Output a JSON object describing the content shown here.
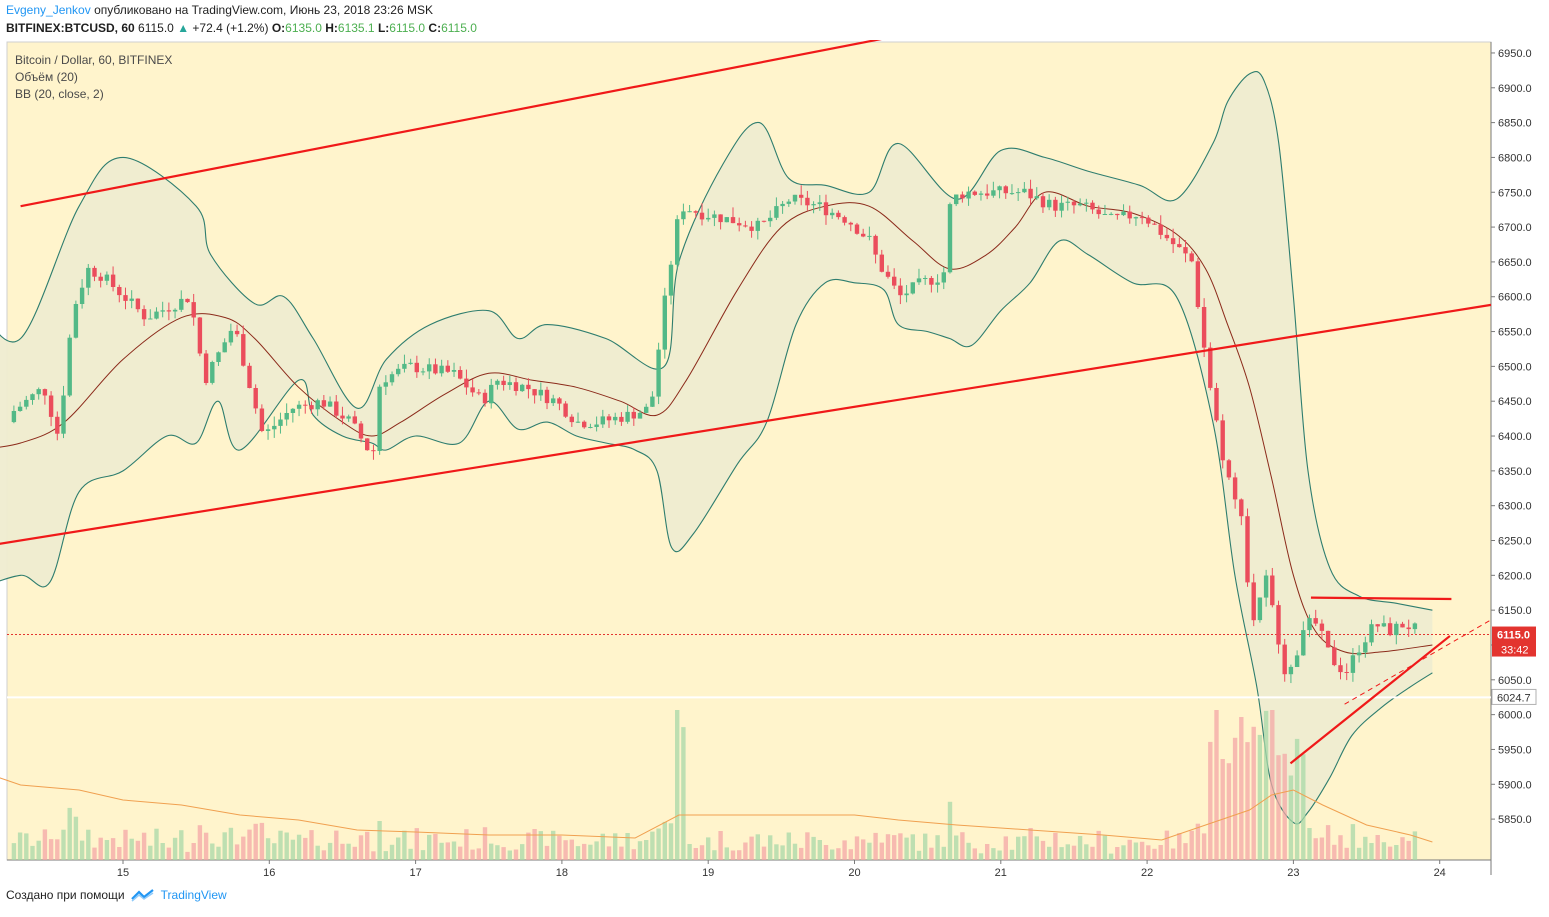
{
  "header": {
    "author": "Evgeny_Jenkov",
    "published_text": "опубликовано на TradingView.com, Июнь 23, 2018 23:26 MSK",
    "symbol": "BITFINEX:BTCUSD, 60",
    "last": "6115.0",
    "change": "+72.4 (+1.2%)",
    "o_label": "O:",
    "o": "6135.0",
    "h_label": "H:",
    "h": "6135.1",
    "l_label": "L:",
    "l": "6115.0",
    "c_label": "C:",
    "c": "6115.0"
  },
  "legend": {
    "title": "Bitcoin / Dollar, 60, BITFINEX",
    "volume": "Объём (20)",
    "bb": "BB (20, close, 2)"
  },
  "footer": {
    "text": "Создано при помощи",
    "brand": "TradingView"
  },
  "colors": {
    "background": "#fff4cc",
    "up": "#53b987",
    "down": "#eb4d5c",
    "bb_line": "#2e7d6e",
    "bb_fill": "#efecd0",
    "basis": "#8b2a1a",
    "trendline": "#f01919",
    "vol_ma": "#f0a050"
  },
  "chart_data": {
    "type": "candlestick",
    "title": "Bitcoin / Dollar, 60, BITFINEX",
    "ylim": [
      5815,
      6985
    ],
    "y_ticks": [
      5850,
      5900,
      5950,
      6000,
      6050,
      6100,
      6150,
      6200,
      6250,
      6300,
      6350,
      6400,
      6450,
      6500,
      6550,
      6600,
      6650,
      6700,
      6750,
      6800,
      6850,
      6900,
      6950
    ],
    "x_ticks": [
      "15",
      "16",
      "17",
      "18",
      "19",
      "20",
      "21",
      "22",
      "23",
      "24"
    ],
    "price_labels": [
      {
        "value": 6115.0,
        "text": "6115.0",
        "sub": "33:42"
      },
      {
        "value": 6024.7,
        "text": "6024.7"
      }
    ],
    "close_path": [
      [
        14.2,
        6420
      ],
      [
        14.5,
        6470
      ],
      [
        14.6,
        6400
      ],
      [
        14.7,
        6580
      ],
      [
        14.8,
        6640
      ],
      [
        14.9,
        6630
      ],
      [
        15.2,
        6570
      ],
      [
        15.5,
        6600
      ],
      [
        15.6,
        6480
      ],
      [
        15.8,
        6560
      ],
      [
        16.0,
        6400
      ],
      [
        16.2,
        6440
      ],
      [
        16.4,
        6450
      ],
      [
        16.6,
        6420
      ],
      [
        16.75,
        6370
      ],
      [
        16.8,
        6480
      ],
      [
        17.0,
        6500
      ],
      [
        17.3,
        6490
      ],
      [
        17.5,
        6450
      ],
      [
        17.6,
        6480
      ],
      [
        17.8,
        6470
      ],
      [
        18.0,
        6450
      ],
      [
        18.15,
        6420
      ],
      [
        18.3,
        6420
      ],
      [
        18.5,
        6430
      ],
      [
        18.65,
        6440
      ],
      [
        18.75,
        6600
      ],
      [
        18.85,
        6730
      ],
      [
        19.0,
        6720
      ],
      [
        19.2,
        6710
      ],
      [
        19.4,
        6700
      ],
      [
        19.6,
        6740
      ],
      [
        19.8,
        6730
      ],
      [
        20.0,
        6710
      ],
      [
        20.15,
        6680
      ],
      [
        20.2,
        6650
      ],
      [
        20.35,
        6600
      ],
      [
        20.5,
        6620
      ],
      [
        20.65,
        6630
      ],
      [
        20.7,
        6740
      ],
      [
        20.8,
        6750
      ],
      [
        21.0,
        6750
      ],
      [
        21.2,
        6750
      ],
      [
        21.4,
        6730
      ],
      [
        21.6,
        6730
      ],
      [
        21.8,
        6710
      ],
      [
        22.0,
        6720
      ],
      [
        22.2,
        6680
      ],
      [
        22.35,
        6650
      ],
      [
        22.45,
        6500
      ],
      [
        22.55,
        6380
      ],
      [
        22.6,
        6340
      ],
      [
        22.65,
        6300
      ],
      [
        22.7,
        6290
      ],
      [
        22.75,
        6120
      ],
      [
        22.8,
        6160
      ],
      [
        22.85,
        6200
      ],
      [
        22.9,
        6150
      ],
      [
        23.0,
        6050
      ],
      [
        23.05,
        6070
      ],
      [
        23.1,
        6130
      ],
      [
        23.2,
        6130
      ],
      [
        23.3,
        6080
      ],
      [
        23.4,
        6060
      ],
      [
        23.5,
        6100
      ],
      [
        23.6,
        6130
      ],
      [
        23.7,
        6120
      ],
      [
        23.8,
        6130
      ],
      [
        23.95,
        6115
      ]
    ],
    "bb_upper": [
      [
        14.0,
        6590
      ],
      [
        14.3,
        6540
      ],
      [
        14.7,
        6730
      ],
      [
        15.0,
        6800
      ],
      [
        15.5,
        6730
      ],
      [
        15.6,
        6660
      ],
      [
        15.9,
        6590
      ],
      [
        16.1,
        6600
      ],
      [
        16.3,
        6540
      ],
      [
        16.6,
        6440
      ],
      [
        16.8,
        6510
      ],
      [
        17.1,
        6560
      ],
      [
        17.5,
        6580
      ],
      [
        17.7,
        6540
      ],
      [
        17.9,
        6560
      ],
      [
        18.3,
        6540
      ],
      [
        18.7,
        6500
      ],
      [
        18.8,
        6650
      ],
      [
        19.1,
        6790
      ],
      [
        19.35,
        6850
      ],
      [
        19.55,
        6770
      ],
      [
        19.8,
        6760
      ],
      [
        20.1,
        6750
      ],
      [
        20.3,
        6820
      ],
      [
        20.7,
        6740
      ],
      [
        21.0,
        6810
      ],
      [
        21.3,
        6800
      ],
      [
        21.6,
        6780
      ],
      [
        21.95,
        6760
      ],
      [
        22.2,
        6740
      ],
      [
        22.45,
        6820
      ],
      [
        22.55,
        6880
      ],
      [
        22.7,
        6920
      ],
      [
        22.8,
        6910
      ],
      [
        22.9,
        6820
      ],
      [
        23.0,
        6600
      ],
      [
        23.1,
        6350
      ],
      [
        23.25,
        6210
      ],
      [
        23.45,
        6170
      ],
      [
        23.7,
        6160
      ],
      [
        23.95,
        6150
      ]
    ],
    "bb_lower": [
      [
        14.0,
        6180
      ],
      [
        14.3,
        6200
      ],
      [
        14.5,
        6190
      ],
      [
        14.7,
        6320
      ],
      [
        15.0,
        6350
      ],
      [
        15.3,
        6400
      ],
      [
        15.5,
        6390
      ],
      [
        15.65,
        6450
      ],
      [
        15.8,
        6380
      ],
      [
        16.2,
        6480
      ],
      [
        16.3,
        6430
      ],
      [
        16.5,
        6400
      ],
      [
        16.7,
        6390
      ],
      [
        16.8,
        6380
      ],
      [
        17.0,
        6400
      ],
      [
        17.3,
        6390
      ],
      [
        17.5,
        6450
      ],
      [
        17.7,
        6410
      ],
      [
        17.9,
        6420
      ],
      [
        18.1,
        6400
      ],
      [
        18.3,
        6390
      ],
      [
        18.5,
        6380
      ],
      [
        18.65,
        6350
      ],
      [
        18.75,
        6240
      ],
      [
        18.9,
        6260
      ],
      [
        19.2,
        6360
      ],
      [
        19.4,
        6420
      ],
      [
        19.6,
        6560
      ],
      [
        19.8,
        6620
      ],
      [
        20.0,
        6620
      ],
      [
        20.2,
        6610
      ],
      [
        20.3,
        6560
      ],
      [
        20.5,
        6550
      ],
      [
        20.65,
        6540
      ],
      [
        20.8,
        6530
      ],
      [
        21.0,
        6580
      ],
      [
        21.2,
        6620
      ],
      [
        21.4,
        6680
      ],
      [
        21.6,
        6660
      ],
      [
        21.9,
        6620
      ],
      [
        22.2,
        6600
      ],
      [
        22.45,
        6420
      ],
      [
        22.6,
        6200
      ],
      [
        22.75,
        6040
      ],
      [
        22.85,
        5900
      ],
      [
        23.0,
        5845
      ],
      [
        23.1,
        5860
      ],
      [
        23.25,
        5910
      ],
      [
        23.4,
        5970
      ],
      [
        23.6,
        6010
      ],
      [
        23.8,
        6040
      ],
      [
        23.95,
        6060
      ]
    ],
    "bb_basis": [
      [
        14.0,
        6380
      ],
      [
        14.3,
        6390
      ],
      [
        14.6,
        6420
      ],
      [
        15.0,
        6510
      ],
      [
        15.4,
        6570
      ],
      [
        15.7,
        6570
      ],
      [
        15.9,
        6540
      ],
      [
        16.2,
        6470
      ],
      [
        16.5,
        6420
      ],
      [
        16.7,
        6400
      ],
      [
        16.9,
        6420
      ],
      [
        17.2,
        6460
      ],
      [
        17.5,
        6490
      ],
      [
        17.8,
        6480
      ],
      [
        18.1,
        6470
      ],
      [
        18.4,
        6450
      ],
      [
        18.65,
        6430
      ],
      [
        18.85,
        6480
      ],
      [
        19.2,
        6610
      ],
      [
        19.5,
        6700
      ],
      [
        19.8,
        6730
      ],
      [
        20.1,
        6730
      ],
      [
        20.4,
        6680
      ],
      [
        20.65,
        6640
      ],
      [
        20.9,
        6660
      ],
      [
        21.1,
        6700
      ],
      [
        21.3,
        6750
      ],
      [
        21.6,
        6730
      ],
      [
        21.9,
        6720
      ],
      [
        22.2,
        6690
      ],
      [
        22.4,
        6640
      ],
      [
        22.55,
        6560
      ],
      [
        22.7,
        6470
      ],
      [
        22.85,
        6340
      ],
      [
        23.0,
        6200
      ],
      [
        23.15,
        6120
      ],
      [
        23.35,
        6090
      ],
      [
        23.6,
        6090
      ],
      [
        23.95,
        6100
      ]
    ],
    "volume_ma": [
      [
        14.0,
        90
      ],
      [
        14.3,
        75
      ],
      [
        14.7,
        70
      ],
      [
        15.0,
        60
      ],
      [
        15.4,
        55
      ],
      [
        15.8,
        45
      ],
      [
        16.2,
        40
      ],
      [
        16.6,
        30
      ],
      [
        17.0,
        28
      ],
      [
        17.5,
        25
      ],
      [
        18.0,
        25
      ],
      [
        18.5,
        22
      ],
      [
        18.8,
        45
      ],
      [
        19.2,
        45
      ],
      [
        19.6,
        45
      ],
      [
        20.0,
        45
      ],
      [
        20.3,
        40
      ],
      [
        20.7,
        35
      ],
      [
        21.2,
        30
      ],
      [
        21.7,
        25
      ],
      [
        22.1,
        20
      ],
      [
        22.4,
        35
      ],
      [
        22.7,
        50
      ],
      [
        22.85,
        65
      ],
      [
        23.0,
        70
      ],
      [
        23.2,
        55
      ],
      [
        23.5,
        35
      ],
      [
        23.8,
        25
      ],
      [
        23.95,
        18
      ]
    ],
    "trendlines": [
      {
        "from": [
          14.3,
          6730
        ],
        "to": [
          20.55,
          6985
        ],
        "style": "solid"
      },
      {
        "from": [
          14.0,
          6240
        ],
        "to": [
          24.55,
          6595
        ],
        "style": "solid"
      },
      {
        "from": [
          23.12,
          6168
        ],
        "to": [
          24.08,
          6166
        ],
        "style": "solid"
      },
      {
        "from": [
          22.98,
          5930
        ],
        "to": [
          24.07,
          6113
        ],
        "style": "solid"
      },
      {
        "from": [
          23.35,
          6015
        ],
        "to": [
          24.4,
          6142
        ],
        "style": "dashed"
      }
    ],
    "hlines": [
      {
        "value": 6115.0,
        "style": "dotted"
      },
      {
        "value": 6024.7,
        "style": "solid"
      }
    ]
  }
}
